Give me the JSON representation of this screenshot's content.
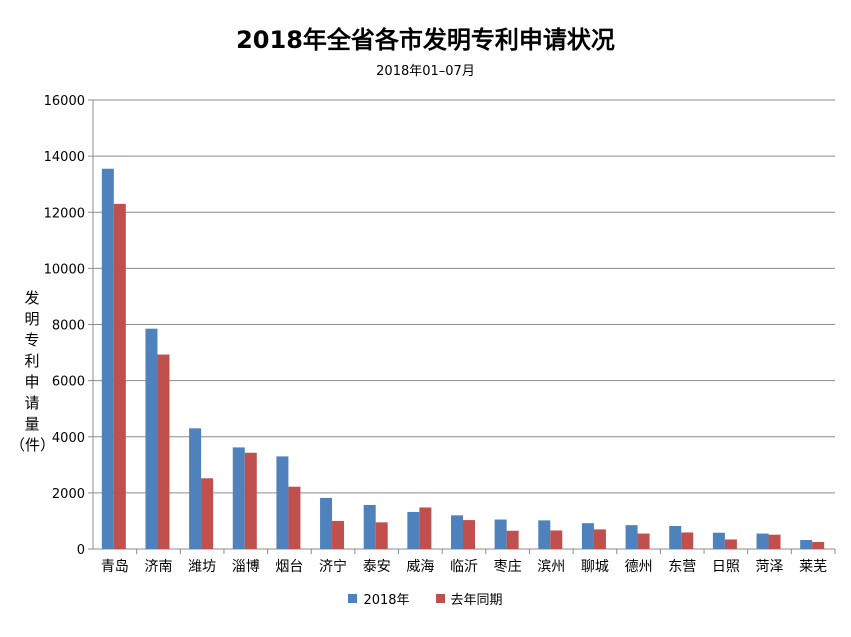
{
  "chart_data": {
    "type": "bar",
    "title": "2018年全省各市发明专利申请状况",
    "subtitle": "2018年01–07月",
    "ylabel": "发明专利申请量（件）",
    "ylabel_chars": [
      "发",
      "明",
      "专",
      "利",
      "申",
      "请",
      "量",
      "（件）"
    ],
    "ylim": [
      0,
      16000
    ],
    "yticks": [
      "0",
      "2000",
      "4000",
      "6000",
      "8000",
      "10000",
      "12000",
      "14000",
      "16000"
    ],
    "grid": true,
    "legend_position": "bottom",
    "categories": [
      "青岛",
      "济南",
      "潍坊",
      "淄博",
      "烟台",
      "济宁",
      "泰安",
      "威海",
      "临沂",
      "枣庄",
      "滨州",
      "聊城",
      "德州",
      "东营",
      "日照",
      "菏泽",
      "莱芜"
    ],
    "series": [
      {
        "name": "2018年",
        "color": "#4f81bd",
        "values": [
          13550,
          7850,
          4300,
          3620,
          3300,
          1820,
          1570,
          1320,
          1200,
          1050,
          1020,
          920,
          850,
          820,
          580,
          550,
          320
        ]
      },
      {
        "name": "去年同期",
        "color": "#c0504d",
        "values": [
          12300,
          6930,
          2520,
          3430,
          2220,
          1000,
          950,
          1480,
          1030,
          650,
          660,
          700,
          550,
          590,
          340,
          510,
          250
        ]
      }
    ]
  }
}
